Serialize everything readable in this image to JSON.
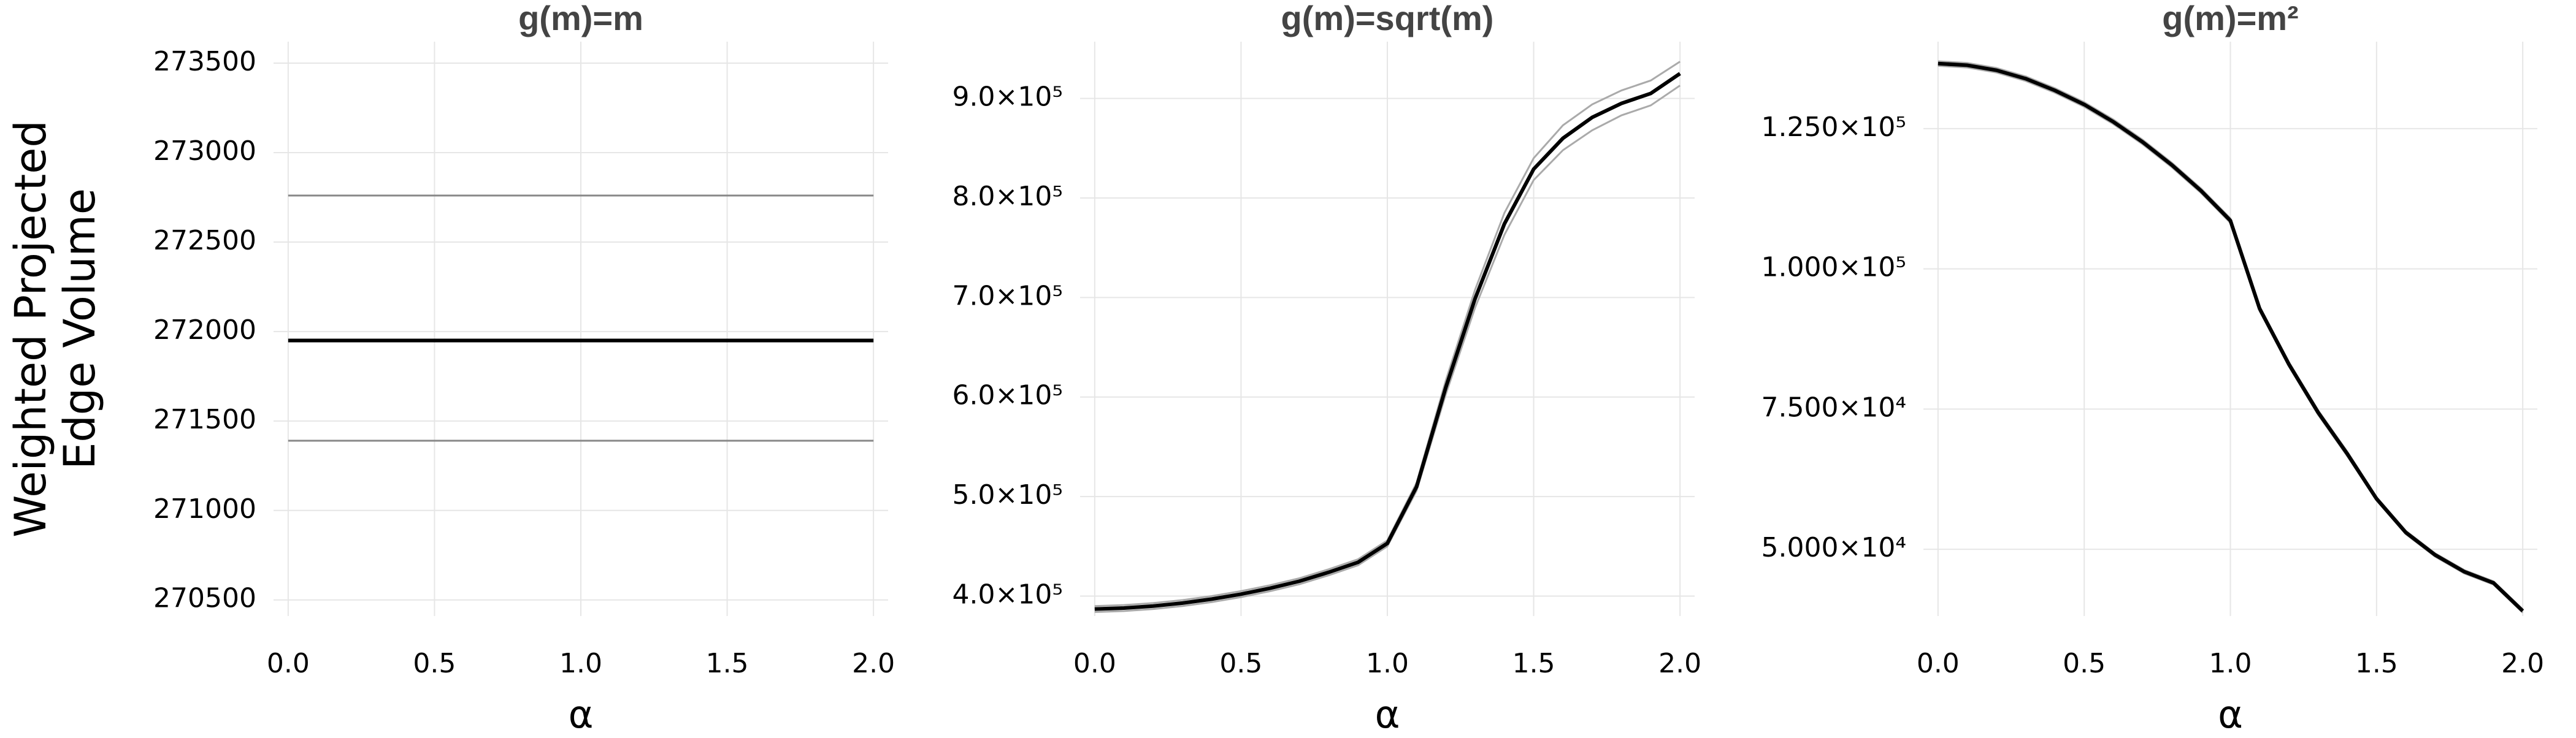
{
  "chart_data": [
    {
      "type": "line",
      "title": "g(m)=m",
      "xlabel": "α",
      "ylabel": [
        "Weighted Projected",
        "Edge Volume"
      ],
      "x": [
        0,
        0.1,
        0.2,
        0.3,
        0.4,
        0.5,
        0.6,
        0.7,
        0.8,
        0.9,
        1.0,
        1.1,
        1.2,
        1.3,
        1.4,
        1.5,
        1.6,
        1.7,
        1.8,
        1.9,
        2.0
      ],
      "series": [
        {
          "color": "#888888",
          "values": [
            272760,
            272760,
            272760,
            272760,
            272760,
            272760,
            272760,
            272760,
            272760,
            272760,
            272760,
            272760,
            272760,
            272760,
            272760,
            272760,
            272760,
            272760,
            272760,
            272760,
            272760
          ]
        },
        {
          "color": "#888888",
          "values": [
            271390,
            271390,
            271390,
            271390,
            271390,
            271390,
            271390,
            271390,
            271390,
            271390,
            271390,
            271390,
            271390,
            271390,
            271390,
            271390,
            271390,
            271390,
            271390,
            271390,
            271390
          ]
        },
        {
          "color": "#000000",
          "values": [
            271950,
            271950,
            271950,
            271950,
            271950,
            271950,
            271950,
            271950,
            271950,
            271950,
            271950,
            271950,
            271950,
            271950,
            271950,
            271950,
            271950,
            271950,
            271950,
            271950,
            271950
          ]
        }
      ],
      "xlim": [
        -0.05,
        2.05
      ],
      "xticks": [
        {
          "value": 0,
          "label": "0.0"
        },
        {
          "value": 0.5,
          "label": "0.5"
        },
        {
          "value": 1,
          "label": "1.0"
        },
        {
          "value": 1.5,
          "label": "1.5"
        },
        {
          "value": 2,
          "label": "2.0"
        }
      ],
      "ylim": [
        270410,
        273620
      ],
      "yticks": [
        270500,
        271000,
        271500,
        272000,
        272500,
        273000,
        273500
      ],
      "grid": true
    },
    {
      "type": "line",
      "title": "g(m)=sqrt(m)",
      "xlabel": "α",
      "x": [
        0,
        0.1,
        0.2,
        0.3,
        0.4,
        0.5,
        0.6,
        0.7,
        0.8,
        0.9,
        1.0,
        1.1,
        1.2,
        1.3,
        1.4,
        1.5,
        1.6,
        1.7,
        1.8,
        1.9,
        2.0
      ],
      "series": [
        {
          "color": "#aaaaaa",
          "values": [
            390000,
            391000,
            393000,
            396000,
            400000,
            405000,
            411000,
            418000,
            427000,
            437000,
            456000,
            514000,
            617000,
            708000,
            785000,
            840000,
            873000,
            894000,
            908000,
            918000,
            937000
          ]
        },
        {
          "color": "#aaaaaa",
          "values": [
            384000,
            385000,
            387000,
            390000,
            394000,
            399000,
            405000,
            412000,
            421000,
            431000,
            450000,
            506000,
            603000,
            690000,
            763000,
            818000,
            848000,
            868000,
            883000,
            893000,
            913000
          ]
        },
        {
          "color": "#000000",
          "values": [
            387000,
            388000,
            390000,
            393000,
            397000,
            402000,
            408000,
            415000,
            424000,
            434000,
            453000,
            510000,
            610000,
            699000,
            774000,
            829000,
            860000,
            881000,
            895000,
            905000,
            925000
          ]
        }
      ],
      "xlim": [
        -0.05,
        2.05
      ],
      "xticks": [
        {
          "value": 0,
          "label": "0.0"
        },
        {
          "value": 0.5,
          "label": "0.5"
        },
        {
          "value": 1,
          "label": "1.0"
        },
        {
          "value": 1.5,
          "label": "1.5"
        },
        {
          "value": 2,
          "label": "2.0"
        }
      ],
      "ylim": [
        380000,
        957000
      ],
      "yticks": [
        {
          "value": 400000,
          "label": "4.0×10⁵"
        },
        {
          "value": 500000,
          "label": "5.0×10⁵"
        },
        {
          "value": 600000,
          "label": "6.0×10⁵"
        },
        {
          "value": 700000,
          "label": "7.0×10⁵"
        },
        {
          "value": 800000,
          "label": "8.0×10⁵"
        },
        {
          "value": 900000,
          "label": "9.0×10⁵"
        }
      ],
      "grid": true
    },
    {
      "type": "line",
      "title": "g(m)=m²",
      "xlabel": "α",
      "x": [
        0,
        0.1,
        0.2,
        0.3,
        0.4,
        0.5,
        0.6,
        0.7,
        0.8,
        0.9,
        1.0,
        1.1,
        1.2,
        1.3,
        1.4,
        1.5,
        1.6,
        1.7,
        1.8,
        1.9,
        2.0
      ],
      "series": [
        {
          "color": "#aaaaaa",
          "values": [
            137000,
            136700,
            135800,
            134300,
            132200,
            129700,
            126600,
            123000,
            118900,
            114300,
            109000,
            93300,
            83400,
            74800,
            67400,
            59300,
            53300,
            49300,
            46300,
            44300,
            39300
          ]
        },
        {
          "color": "#aaaaaa",
          "values": [
            136200,
            135900,
            135000,
            133500,
            131400,
            128900,
            125800,
            122200,
            118100,
            113500,
            108200,
            92500,
            82600,
            74000,
            66600,
            58700,
            52700,
            48700,
            45700,
            43700,
            38700
          ]
        },
        {
          "color": "#000000",
          "values": [
            136600,
            136300,
            135400,
            133900,
            131800,
            129300,
            126200,
            122600,
            118500,
            113900,
            108600,
            92900,
            83000,
            74400,
            67000,
            59000,
            53000,
            49000,
            46000,
            44000,
            39000
          ]
        }
      ],
      "xlim": [
        -0.05,
        2.05
      ],
      "xticks": [
        {
          "value": 0,
          "label": "0.0"
        },
        {
          "value": 0.5,
          "label": "0.5"
        },
        {
          "value": 1,
          "label": "1.0"
        },
        {
          "value": 1.5,
          "label": "1.5"
        },
        {
          "value": 2,
          "label": "2.0"
        }
      ],
      "ylim": [
        38100,
        140500
      ],
      "yticks": [
        {
          "value": 50000,
          "label": "5.000×10⁴"
        },
        {
          "value": 75000,
          "label": "7.500×10⁴"
        },
        {
          "value": 100000,
          "label": "1.000×10⁵"
        },
        {
          "value": 125000,
          "label": "1.250×10⁵"
        }
      ],
      "grid": true
    }
  ]
}
